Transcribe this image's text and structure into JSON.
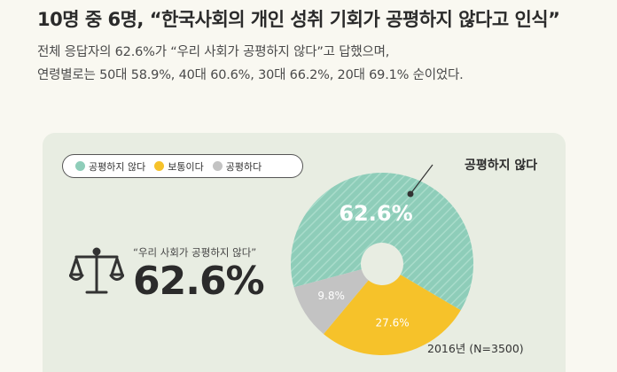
{
  "headline": "10명 중 6명, “한국사회의 개인 성취 기회가 공평하지 않다고 인식”",
  "description": {
    "line1": "전체 응답자의 62.6%가 “우리 사회가 공평하지 않다”고 답했으며,",
    "line2": "연령별로는 50대 58.9%, 40대 60.6%, 30대 66.2%, 20대 69.1% 순이었다."
  },
  "quote": "“우리 사회가 공평하지 않다”",
  "big_value": "62.6%",
  "callout_label": "공평하지 않다",
  "footnote": "2016년 (N=3500)",
  "icons": {
    "scale": "balance-scale-icon"
  },
  "colors": {
    "unfair": "#8ecdb9",
    "neutral": "#f6c22a",
    "fair": "#c3c3c3",
    "background": "#f9f8f1",
    "card": "#e8ede2"
  },
  "chart_data": {
    "type": "pie",
    "style": "donut",
    "legend_placement": "top-left",
    "categories": [
      "공평하지 않다",
      "보통이다",
      "공평하다"
    ],
    "values": [
      62.6,
      27.6,
      9.8
    ],
    "labels": [
      "62.6%",
      "27.6%",
      "9.8%"
    ],
    "colors": [
      "#8ecdb9",
      "#f6c22a",
      "#c3c3c3"
    ]
  }
}
